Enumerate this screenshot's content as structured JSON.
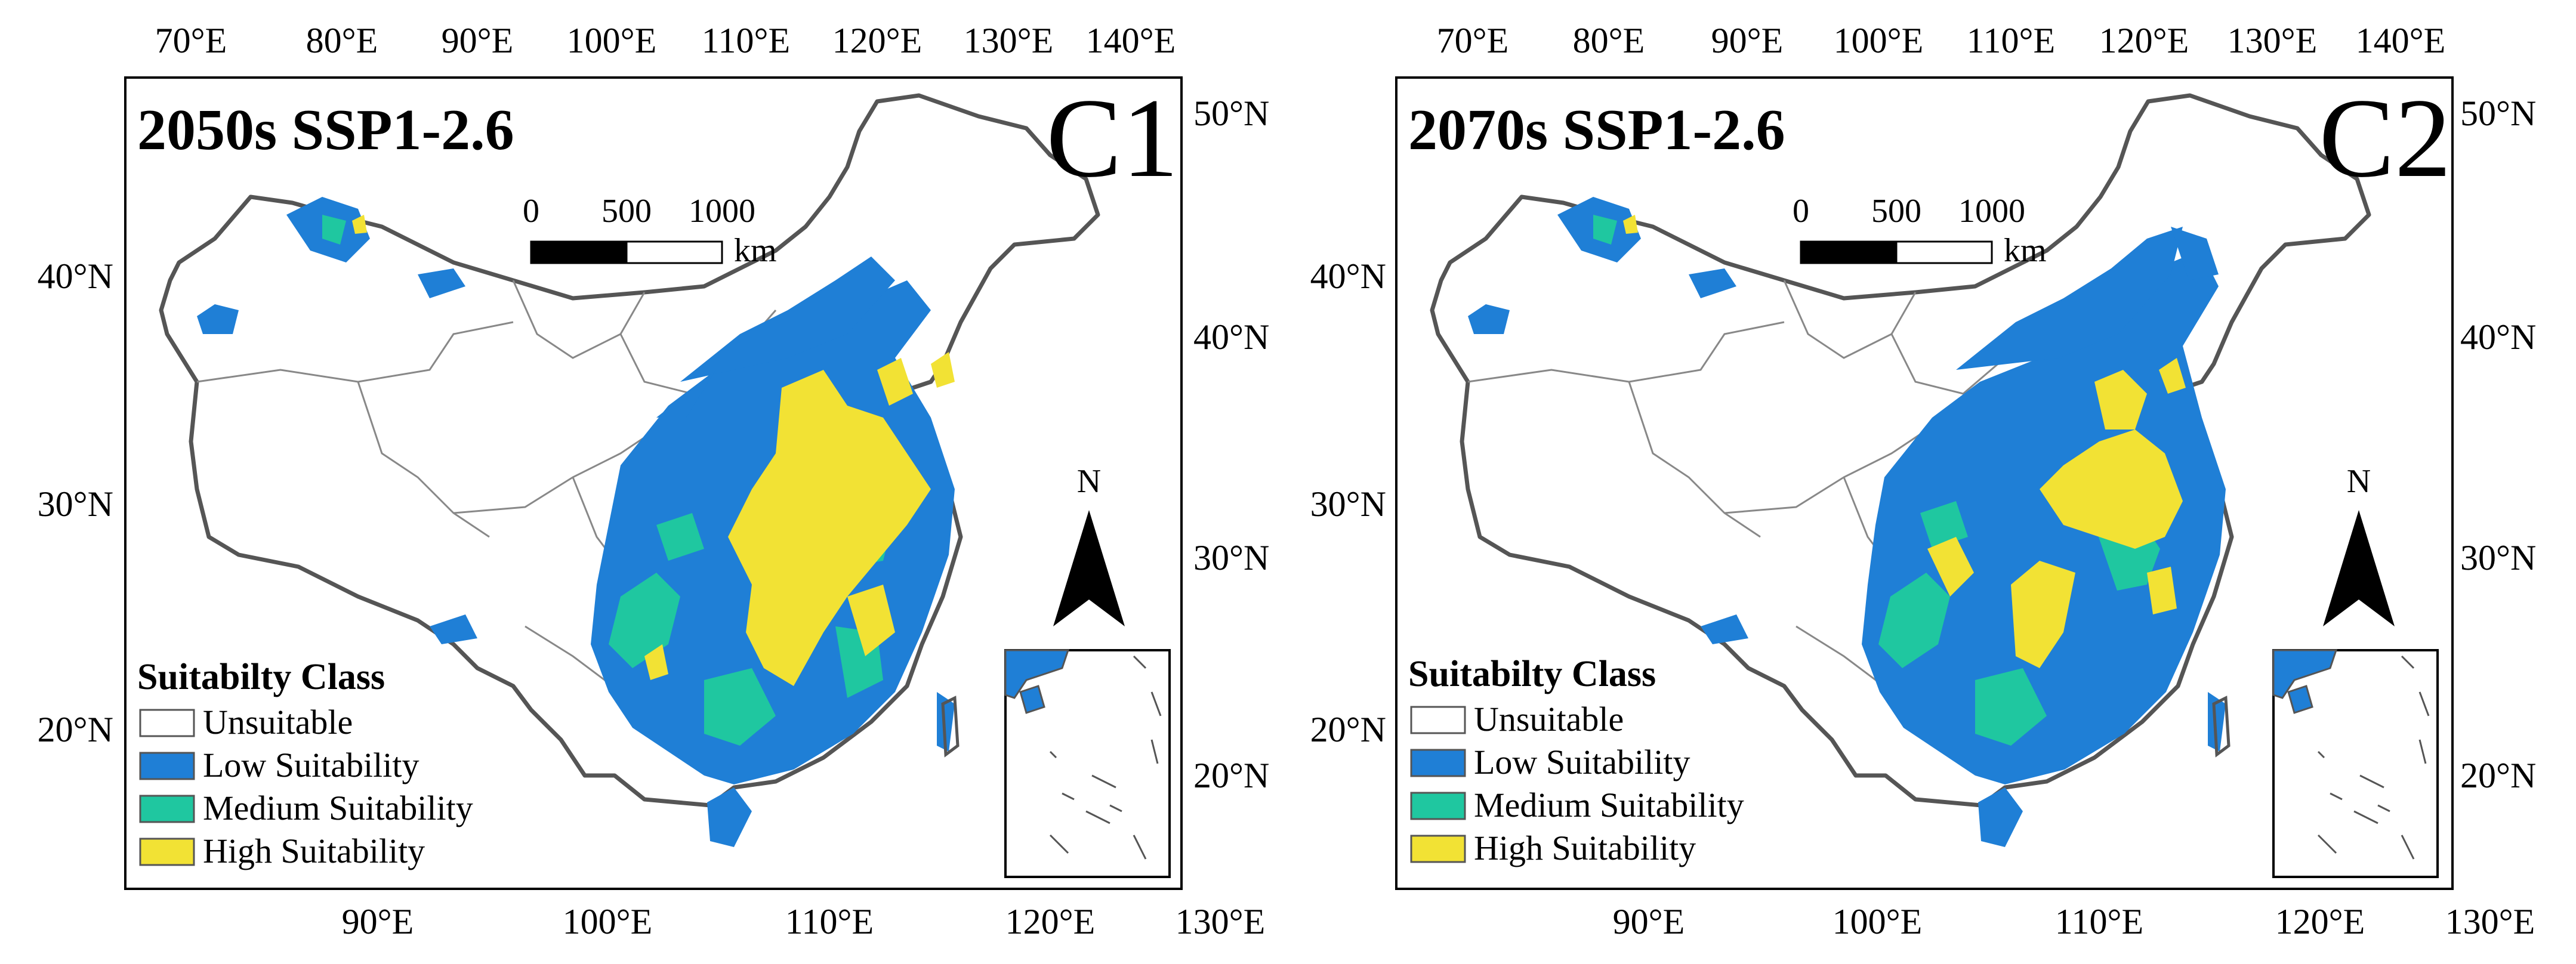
{
  "colors": {
    "unsuitable": "#ffffff",
    "low": "#1f7fd6",
    "medium": "#1fc7a0",
    "high": "#f2e234",
    "border": "#555555"
  },
  "legend": {
    "title": "Suitabilty Class",
    "items": [
      {
        "label": "Unsuitable",
        "color": "#ffffff"
      },
      {
        "label": "Low Suitability",
        "color": "#1f7fd6"
      },
      {
        "label": "Medium Suitability",
        "color": "#1fc7a0"
      },
      {
        "label": "High Suitability",
        "color": "#f2e234"
      }
    ]
  },
  "scale_bar": {
    "ticks": [
      "0",
      "500",
      "1000"
    ],
    "unit": "km"
  },
  "north_arrow": {
    "label": "N"
  },
  "axes": {
    "top_lon": [
      "70°E",
      "80°E",
      "90°E",
      "100°E",
      "110°E",
      "120°E",
      "130°E",
      "140°E"
    ],
    "bottom_lon": [
      "90°E",
      "100°E",
      "110°E",
      "120°E",
      "130°E"
    ],
    "left_lat": [
      "40°N",
      "30°N",
      "20°N"
    ],
    "right_lat": [
      "50°N",
      "40°N",
      "30°N",
      "20°N"
    ]
  },
  "panels": [
    {
      "id": "C1",
      "title": "2050s SSP1-2.6",
      "label": "C1"
    },
    {
      "id": "C2",
      "title": "2070s SSP1-2.6",
      "label": "C2"
    }
  ]
}
